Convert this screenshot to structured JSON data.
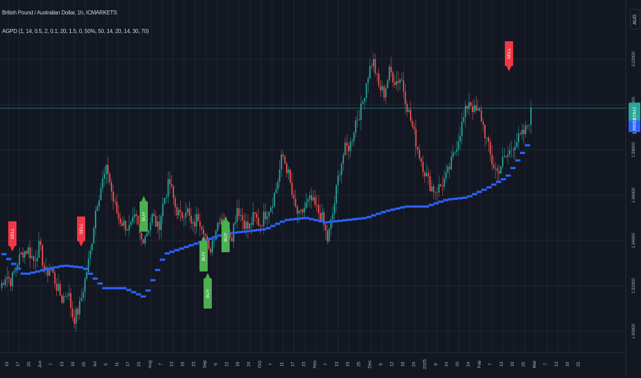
{
  "header": {
    "symbol_line": "British Pound / Australian Dollar, 1h, ICMARKETS",
    "indicator_line": "AGPD (1, 14, 0.5, 2, 0.1, 20, 1.5, 0, 50%, 50, 14, 20, 14, 30, 70)"
  },
  "currency_badge": "AUD",
  "price_scale": {
    "ticks": [
      "2.02000",
      "2.00000",
      "1.98000",
      "1.96000",
      "1.94000",
      "1.92000",
      "1.90000"
    ],
    "last_price_label": "1.99842",
    "countdown_label": "05:42",
    "ma_label": "1.99053"
  },
  "time_axis": {
    "labels": [
      "13",
      "17",
      "20",
      "Jun",
      "7",
      "13",
      "19",
      "25",
      "Jul",
      "5",
      "11",
      "17",
      "23",
      "Aug",
      "7",
      "13",
      "19",
      "23",
      "Sep",
      "6",
      "12",
      "18",
      "24",
      "Oct",
      "7",
      "11",
      "17",
      "23",
      "Nov",
      "7",
      "13",
      "19",
      "25",
      "Dec",
      "6",
      "12",
      "18",
      "24",
      "2025",
      "8",
      "14",
      "20",
      "24",
      "Feb",
      "7",
      "13",
      "19",
      "25",
      "Mar",
      "7",
      "13",
      "19",
      "25"
    ]
  },
  "signals": [
    {
      "type": "sell",
      "label": "SELL"
    },
    {
      "type": "sell",
      "label": "SELL"
    },
    {
      "type": "buy",
      "label": "BUY"
    },
    {
      "type": "buy",
      "label": "BUY"
    },
    {
      "type": "buy",
      "label": "BUY"
    },
    {
      "type": "buy",
      "label": "BUY"
    },
    {
      "type": "sell",
      "label": "SELL"
    }
  ],
  "chart_data": {
    "type": "line",
    "series": [
      {
        "values": [
          1.919,
          1.925,
          1.922,
          1.93,
          1.935,
          1.936,
          1.931,
          1.938,
          1.925,
          1.928,
          1.92,
          1.914,
          1.918,
          1.905,
          1.91,
          1.922,
          1.935,
          1.955,
          1.965,
          1.972,
          1.958,
          1.95,
          1.947,
          1.945,
          1.95,
          1.94,
          1.944,
          1.951,
          1.945,
          1.958,
          1.966,
          1.955,
          1.95,
          1.955,
          1.945,
          1.951,
          1.946,
          1.934,
          1.944,
          1.951,
          1.947,
          1.942,
          1.955,
          1.949,
          1.945,
          1.951,
          1.947,
          1.952,
          1.956,
          1.964,
          1.978,
          1.97,
          1.956,
          1.95,
          1.955,
          1.958,
          1.954,
          1.95,
          1.94,
          1.953,
          1.97,
          1.98,
          1.982,
          1.993,
          1.998,
          2.012,
          2.02,
          2.008,
          2.005,
          2.015,
          2.01,
          2.012,
          2.0,
          1.99,
          1.98,
          1.972,
          1.965,
          1.962,
          1.964,
          1.968,
          1.975,
          1.984,
          1.993,
          2.002,
          1.997,
          1.996,
          1.986,
          1.975,
          1.97,
          1.975,
          1.978,
          1.983,
          1.985,
          1.988,
          1.996
        ],
        "color": "#26a69a"
      },
      {
        "values": [
          1.934,
          1.925,
          1.927,
          1.929,
          1.928,
          1.919,
          1.919,
          1.915,
          1.934,
          1.937,
          1.94,
          1.943,
          1.944,
          1.945,
          1.949,
          1.95,
          1.948,
          1.949,
          1.95,
          1.953,
          1.955,
          1.955,
          1.958,
          1.959,
          1.963,
          1.968,
          1.982
        ],
        "color": "#2962ff"
      }
    ],
    "last_price": 1.99842,
    "ma_last": 1.99053,
    "ylim": [
      1.895,
      2.035
    ],
    "grid": true
  },
  "colors": {
    "background": "#131722",
    "grid": "#1f2433",
    "bull": "#26a69a",
    "bear": "#ef5350",
    "ma": "#2962ff",
    "buy": "#4caf50",
    "sell": "#f23645",
    "last_price_line": "#26a69a"
  }
}
